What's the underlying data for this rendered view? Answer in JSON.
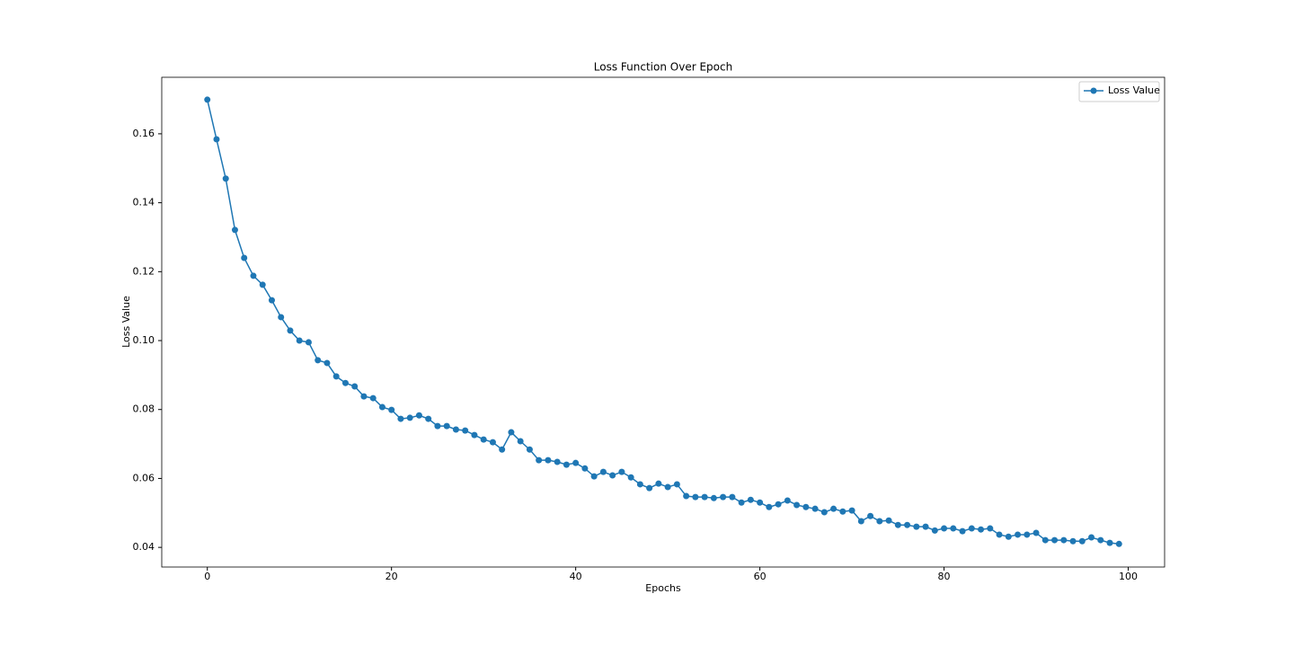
{
  "chart_data": {
    "type": "line",
    "title": "Loss Function Over Epoch",
    "x_label": "Epochs",
    "y_label": "Loss Value",
    "x": [
      0,
      1,
      2,
      3,
      4,
      5,
      6,
      7,
      8,
      9,
      10,
      11,
      12,
      13,
      14,
      15,
      16,
      17,
      18,
      19,
      20,
      21,
      22,
      23,
      24,
      25,
      26,
      27,
      28,
      29,
      30,
      31,
      32,
      33,
      34,
      35,
      36,
      37,
      38,
      39,
      40,
      41,
      42,
      43,
      44,
      45,
      46,
      47,
      48,
      49,
      50,
      51,
      52,
      53,
      54,
      55,
      56,
      57,
      58,
      59,
      60,
      61,
      62,
      63,
      64,
      65,
      66,
      67,
      68,
      69,
      70,
      71,
      72,
      73,
      74,
      75,
      76,
      77,
      78,
      79,
      80,
      81,
      82,
      83,
      84,
      85,
      86,
      87,
      88,
      89,
      90,
      91,
      92,
      93,
      94,
      95,
      96,
      97,
      98,
      99
    ],
    "series": [
      {
        "name": "Loss Value",
        "color": "#1f77b4",
        "values": [
          0.1699,
          0.1584,
          0.147,
          0.1321,
          0.124,
          0.1188,
          0.1162,
          0.1117,
          0.1068,
          0.1029,
          0.1,
          0.0995,
          0.0943,
          0.0935,
          0.0896,
          0.0877,
          0.0867,
          0.0838,
          0.0833,
          0.0807,
          0.0799,
          0.0773,
          0.0776,
          0.0783,
          0.0773,
          0.0752,
          0.0752,
          0.0742,
          0.0739,
          0.0726,
          0.0713,
          0.0705,
          0.0684,
          0.0734,
          0.0708,
          0.0684,
          0.0653,
          0.0653,
          0.0648,
          0.064,
          0.0645,
          0.0629,
          0.0606,
          0.0619,
          0.0609,
          0.0619,
          0.0603,
          0.0583,
          0.0572,
          0.0585,
          0.0575,
          0.0583,
          0.0549,
          0.0546,
          0.0546,
          0.0543,
          0.0546,
          0.0546,
          0.053,
          0.0538,
          0.053,
          0.0517,
          0.0525,
          0.0536,
          0.0523,
          0.0517,
          0.0512,
          0.0502,
          0.0512,
          0.0504,
          0.0507,
          0.0476,
          0.0491,
          0.0476,
          0.0478,
          0.0465,
          0.0465,
          0.046,
          0.046,
          0.0449,
          0.0455,
          0.0455,
          0.0447,
          0.0455,
          0.0452,
          0.0455,
          0.0437,
          0.0431,
          0.0437,
          0.0437,
          0.0442,
          0.0421,
          0.0421,
          0.0421,
          0.0418,
          0.0418,
          0.0429,
          0.0421,
          0.0413,
          0.041
        ]
      }
    ],
    "xlim": [
      -4.95,
      103.95
    ],
    "xticks": [
      0,
      20,
      40,
      60,
      80,
      100
    ],
    "ylim": [
      0.0343,
      0.1764
    ],
    "yticks": [
      0.04,
      0.06,
      0.08,
      {
        "value": 0.1,
        "label": "0.10"
      },
      0.12,
      0.14,
      0.16
    ],
    "grid": false,
    "legend": "upper-right",
    "markers": true
  }
}
